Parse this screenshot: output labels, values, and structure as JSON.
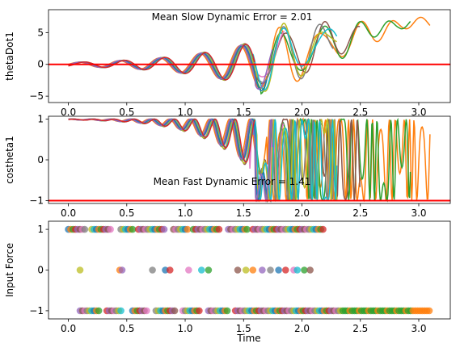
{
  "chart_data": [
    {
      "type": "line",
      "ylabel": "thetaDot1",
      "xlabel": "",
      "annotation": "Mean Slow Dynamic Error = 2.01",
      "xlim": [
        -0.17,
        3.27
      ],
      "ylim": [
        -6.0,
        8.6
      ],
      "xticks": [
        0.0,
        0.5,
        1.0,
        1.5,
        2.0,
        2.5,
        3.0
      ],
      "xtick_labels": [
        "0.0",
        "0.5",
        "1.0",
        "1.5",
        "2.0",
        "2.5",
        "3.0"
      ],
      "yticks": [
        -5,
        0,
        5
      ],
      "ytick_labels": [
        "−5",
        "0",
        "5"
      ],
      "reference_line": {
        "y": 0,
        "color": "#ff0000"
      },
      "series": [
        {
          "color": "#ff7f0e",
          "end": 3.1,
          "diverge": 1.7,
          "amp": 1.0,
          "phase": 0.0
        },
        {
          "color": "#2ca02c",
          "end": 2.93,
          "diverge": 1.65,
          "amp": 1.02,
          "phase": 0.02
        },
        {
          "color": "#8c564b",
          "end": 2.5,
          "diverge": 1.6,
          "amp": 1.05,
          "phase": 0.04
        },
        {
          "color": "#e377c2",
          "end": 1.85,
          "diverge": 1.55,
          "amp": 0.98,
          "phase": 0.03
        },
        {
          "color": "#7f7f7f",
          "end": 2.27,
          "diverge": 1.6,
          "amp": 1.03,
          "phase": 0.015
        },
        {
          "color": "#bcbd22",
          "end": 2.3,
          "diverge": 1.62,
          "amp": 1.04,
          "phase": 0.035
        },
        {
          "color": "#17becf",
          "end": 2.3,
          "diverge": 1.58,
          "amp": 1.0,
          "phase": 0.045
        },
        {
          "color": "#1f77b4",
          "end": 1.7,
          "diverge": 1.6,
          "amp": 0.99,
          "phase": 0.025
        },
        {
          "color": "#9467bd",
          "end": 1.75,
          "diverge": 1.6,
          "amp": 1.01,
          "phase": 0.01
        },
        {
          "color": "#d62728",
          "end": 1.6,
          "diverge": 1.6,
          "amp": 1.0,
          "phase": 0.05
        }
      ]
    },
    {
      "type": "line",
      "ylabel": "costheta1",
      "xlabel": "",
      "annotation": "Mean Fast Dynamic Error = 1.41",
      "xlim": [
        -0.17,
        3.27
      ],
      "ylim": [
        -1.07,
        1.07
      ],
      "xticks": [
        0.0,
        0.5,
        1.0,
        1.5,
        2.0,
        2.5,
        3.0
      ],
      "xtick_labels": [
        "0.0",
        "0.5",
        "1.0",
        "1.5",
        "2.0",
        "2.5",
        "3.0"
      ],
      "yticks": [
        -1,
        0,
        1
      ],
      "ytick_labels": [
        "−1",
        "0",
        "1"
      ],
      "reference_line": {
        "y": -1,
        "color": "#ff0000"
      }
    },
    {
      "type": "scatter",
      "ylabel": "Input Force",
      "xlabel": "Time",
      "xlim": [
        -0.17,
        3.27
      ],
      "ylim": [
        -1.2,
        1.2
      ],
      "xticks": [
        0.0,
        0.5,
        1.0,
        1.5,
        2.0,
        2.5,
        3.0
      ],
      "xtick_labels": [
        "0.0",
        "0.5",
        "1.0",
        "1.5",
        "2.0",
        "2.5",
        "3.0"
      ],
      "yticks": [
        -1,
        0,
        1
      ],
      "ytick_labels": [
        "−1",
        "0",
        "1"
      ],
      "values": [
        -1,
        0,
        1
      ],
      "plus_one_segments": [
        [
          0.0,
          0.15
        ],
        [
          0.2,
          0.38
        ],
        [
          0.45,
          0.55
        ],
        [
          0.6,
          0.83
        ],
        [
          0.9,
          1.03
        ],
        [
          1.07,
          1.3
        ],
        [
          1.37,
          1.55
        ],
        [
          1.58,
          2.2
        ]
      ],
      "zero_points": [
        0.1,
        0.44,
        0.46,
        0.72,
        0.83,
        0.87,
        1.03,
        1.14,
        1.2,
        1.45,
        1.52,
        1.58,
        1.66,
        1.73,
        1.8,
        1.86,
        1.93,
        1.96,
        2.02,
        2.07
      ],
      "minus_one_segments": [
        [
          0.1,
          0.27
        ],
        [
          0.33,
          0.47
        ],
        [
          0.55,
          0.68
        ],
        [
          0.75,
          0.93
        ],
        [
          0.98,
          1.13
        ],
        [
          1.2,
          1.36
        ],
        [
          1.43,
          3.1
        ]
      ],
      "colors": [
        "#1f77b4",
        "#ff7f0e",
        "#2ca02c",
        "#d62728",
        "#9467bd",
        "#8c564b",
        "#e377c2",
        "#7f7f7f",
        "#bcbd22",
        "#17becf"
      ]
    }
  ]
}
